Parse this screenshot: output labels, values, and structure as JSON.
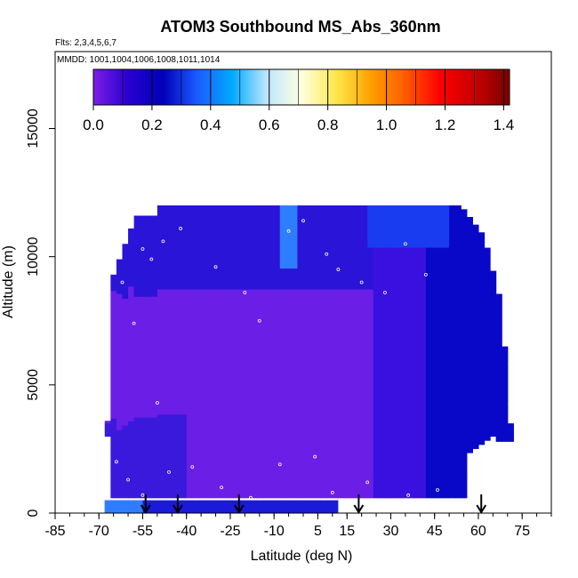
{
  "chart_data": {
    "type": "heatmap",
    "title": "ATOM3 Southbound MS_Abs_360nm",
    "flights_note": "Flts: 2,3,4,5,6,7",
    "dates_note": "MMDD: 1001,1004,1006,1008,1011,1014",
    "xlabel": "Latitude (deg N)",
    "ylabel": "Altitude (m)",
    "xlim": [
      -85,
      85
    ],
    "ylim": [
      0,
      18000
    ],
    "x_ticks": [
      -85,
      -70,
      -55,
      -40,
      -25,
      -10,
      5,
      15,
      30,
      45,
      60,
      75
    ],
    "x_tick_labels": [
      "-85",
      "-70",
      "-55",
      "-40",
      "-25",
      "-10",
      "5",
      "15",
      "30",
      "45",
      "60",
      "75"
    ],
    "y_ticks": [
      0,
      5000,
      10000,
      15000
    ],
    "y_tick_labels": [
      "0",
      "5000",
      "10000",
      "15000"
    ],
    "colorbar": {
      "range": [
        0,
        1.42
      ],
      "ticks": [
        0.0,
        0.2,
        0.4,
        0.6,
        0.8,
        1.0,
        1.2,
        1.4
      ],
      "tick_labels": [
        "0.0",
        "0.2",
        "0.4",
        "0.6",
        "0.8",
        "1.0",
        "1.2",
        "1.4"
      ],
      "colors": [
        "#7a1fe6",
        "#2a00d0",
        "#0000b8",
        "#1a5cff",
        "#00aaff",
        "#bde6ff",
        "#ffffe0",
        "#ffe84a",
        "#ffa000",
        "#ff5a00",
        "#ff0000",
        "#c80000",
        "#7a0000"
      ]
    },
    "arrow_latitudes": [
      -54,
      -43,
      -22,
      19,
      61
    ],
    "data_region": {
      "latitude_range": [
        -68,
        71
      ],
      "altitude_range": [
        0,
        12000
      ],
      "value_range": [
        0.0,
        0.5
      ],
      "dominant_value_approx": 0.1
    }
  }
}
